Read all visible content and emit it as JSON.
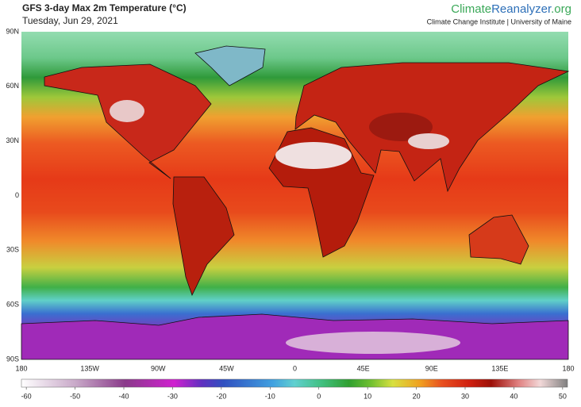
{
  "header": {
    "title": "GFS 3-day Max 2m Temperature (°C)",
    "subtitle": "Tuesday, Jun 29, 2021",
    "brand": [
      "Climate",
      "Reanalyzer",
      ".org"
    ],
    "institute": "Climate Change Institute | University of Maine"
  },
  "map": {
    "lat_labels": [
      "90N",
      "60N",
      "30N",
      "0",
      "30S",
      "60S",
      "90S"
    ],
    "lon_labels": [
      "180",
      "135W",
      "90W",
      "45W",
      "0",
      "45E",
      "90E",
      "135E",
      "180"
    ]
  },
  "colorbar": {
    "range": [
      -61,
      51
    ],
    "ticks": [
      -60,
      -50,
      -40,
      -30,
      -20,
      -10,
      0,
      10,
      20,
      30,
      40,
      50
    ]
  }
}
